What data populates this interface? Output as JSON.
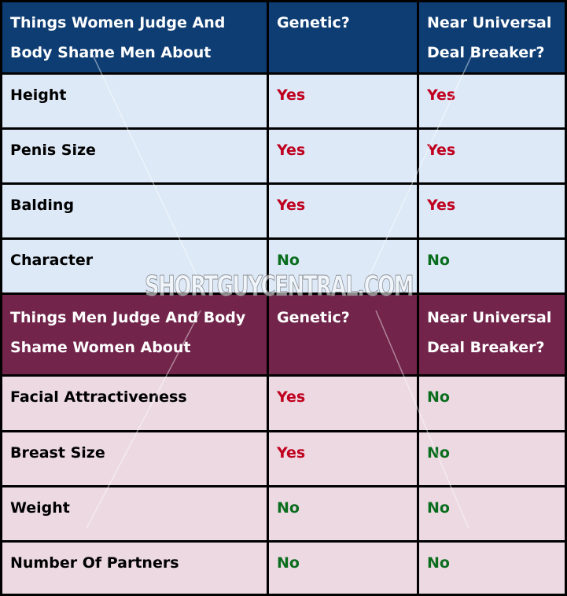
{
  "table": {
    "section1": {
      "headers": [
        "Things Women Judge And\nBody Shame Men About",
        "Genetic?",
        "Near Universal\nDeal Breaker?"
      ],
      "rows": [
        {
          "item": "Height",
          "genetic": "Yes",
          "deal_breaker": "Yes"
        },
        {
          "item": "Penis Size",
          "genetic": "Yes",
          "deal_breaker": "Yes"
        },
        {
          "item": "Balding",
          "genetic": "Yes",
          "deal_breaker": "Yes"
        },
        {
          "item": "Character",
          "genetic": "No",
          "deal_breaker": "No"
        }
      ]
    },
    "section2": {
      "headers": [
        "Things Men Judge And Body\nShame Women About",
        "Genetic?",
        "Near Universal\nDeal Breaker?"
      ],
      "rows": [
        {
          "item": "Facial Attractiveness",
          "genetic": "Yes",
          "deal_breaker": "No"
        },
        {
          "item": "Breast Size",
          "genetic": "Yes",
          "deal_breaker": "No"
        },
        {
          "item": "Weight",
          "genetic": "No",
          "deal_breaker": "No"
        },
        {
          "item": "Number Of Partners",
          "genetic": "No",
          "deal_breaker": "No"
        }
      ]
    }
  },
  "watermark": "SHORTGUYCENTRAL.COM",
  "colors": {
    "header_men": "#0e3d73",
    "header_women": "#72244a",
    "row_men": "#dde9f7",
    "row_women": "#ecd9e2",
    "yes": "#c0001f",
    "no": "#0a6d1d"
  }
}
